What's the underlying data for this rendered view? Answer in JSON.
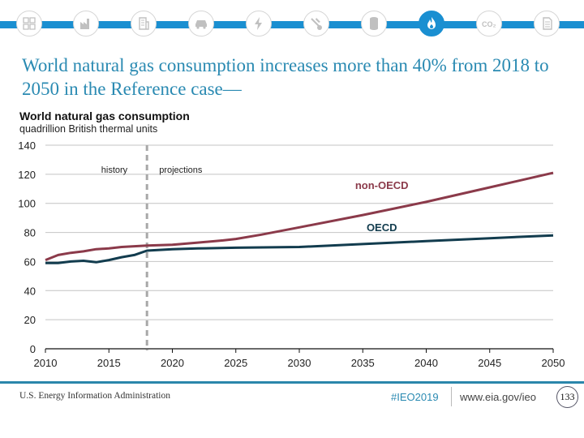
{
  "topbar": {
    "icons": [
      {
        "name": "sectors-overview-icon",
        "active": false
      },
      {
        "name": "industrial-icon",
        "active": false
      },
      {
        "name": "buildings-icon",
        "active": false
      },
      {
        "name": "transportation-icon",
        "active": false
      },
      {
        "name": "electricity-icon",
        "active": false
      },
      {
        "name": "coal-mining-icon",
        "active": false
      },
      {
        "name": "petroleum-barrel-icon",
        "active": false
      },
      {
        "name": "natural-gas-flame-icon",
        "active": true
      },
      {
        "name": "co2-emissions-icon",
        "active": false
      },
      {
        "name": "documents-icon",
        "active": false
      }
    ],
    "colors": {
      "bar": "#1a8fd1",
      "inactive_icon": "#c0c0c0"
    }
  },
  "slide": {
    "title": "World natural gas consumption increases more than 40% from 2018 to 2050 in the Reference case—"
  },
  "chart_data": {
    "type": "line",
    "title": "World natural gas consumption",
    "subtitle": "quadrillion British thermal units",
    "xlabel": "",
    "ylabel": "",
    "xlim": [
      2010,
      2050
    ],
    "ylim": [
      0,
      140
    ],
    "x_ticks": [
      "2010",
      "2015",
      "2020",
      "2025",
      "2030",
      "2035",
      "2040",
      "2045",
      "2050"
    ],
    "y_ticks": [
      "0",
      "20",
      "40",
      "60",
      "80",
      "100",
      "120",
      "140"
    ],
    "grid": true,
    "divider": {
      "x": 2018,
      "left_label": "history",
      "right_label": "projections"
    },
    "series": [
      {
        "name": "non-OECD",
        "color": "#8b3a4a",
        "x": [
          2010,
          2011,
          2012,
          2013,
          2014,
          2015,
          2016,
          2017,
          2018,
          2020,
          2022,
          2024,
          2025,
          2027,
          2030,
          2035,
          2040,
          2045,
          2050
        ],
        "values": [
          61,
          64.5,
          66,
          67,
          68.5,
          69,
          70,
          70.5,
          71,
          71.5,
          73,
          74.5,
          75.5,
          78.5,
          83.5,
          92,
          101,
          111,
          121
        ]
      },
      {
        "name": "OECD",
        "color": "#123c4e",
        "x": [
          2010,
          2011,
          2012,
          2013,
          2014,
          2015,
          2016,
          2017,
          2018,
          2020,
          2022,
          2025,
          2030,
          2035,
          2040,
          2045,
          2050
        ],
        "values": [
          59,
          59,
          60,
          60.5,
          59.5,
          61,
          63,
          64.5,
          67.5,
          68.5,
          69,
          69.5,
          70,
          72,
          74,
          76,
          78
        ]
      }
    ],
    "annotations": [
      {
        "text": "non-OECD",
        "series": "non-OECD",
        "x": 2036.5,
        "y": 110
      },
      {
        "text": "OECD",
        "series": "OECD",
        "x": 2036.5,
        "y": 81
      }
    ]
  },
  "footer": {
    "organization": "U.S. Energy Information Administration",
    "hashtag": "#IEO2019",
    "url": "www.eia.gov/ieo",
    "page_number": "133"
  }
}
